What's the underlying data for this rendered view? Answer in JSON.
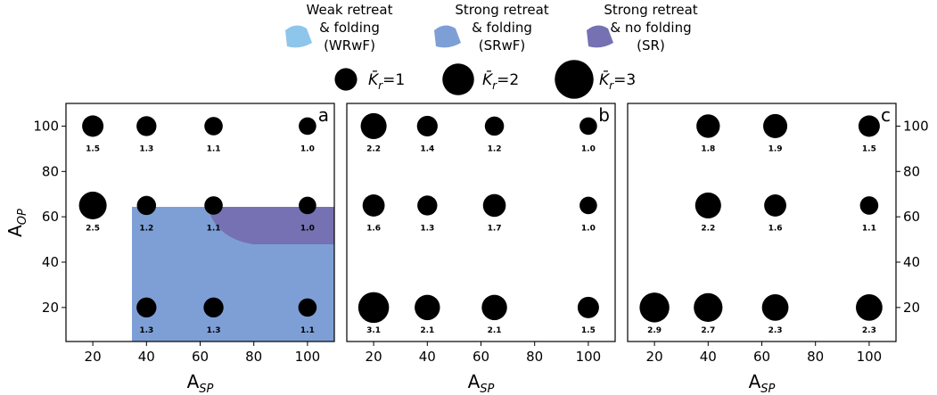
{
  "chart_data": {
    "type": "scatter",
    "colors": {
      "WRwF": "#8ec5ea",
      "SRwF": "#7e9fd6",
      "SR": "#7571b2",
      "dots": "#000000",
      "frame": "#000000"
    },
    "legend": {
      "regions": [
        {
          "key": "WRwF",
          "lines": [
            "Weak retreat",
            "& folding",
            "(WRwF)"
          ]
        },
        {
          "key": "SRwF",
          "lines": [
            "Strong retreat",
            "& folding",
            "(SRwF)"
          ]
        },
        {
          "key": "SR",
          "lines": [
            "Strong retreat",
            "& no folding",
            "(SR)"
          ]
        }
      ],
      "size_symbol": "K̄",
      "size_symbol_sub": "r",
      "sizes": [
        1,
        2,
        3
      ]
    },
    "xlabel": {
      "main": "A",
      "sub": "SP"
    },
    "ylabel": {
      "main": "A",
      "sub": "OP"
    },
    "xlim": [
      10,
      110
    ],
    "ylim": [
      5,
      110
    ],
    "xticks": [
      20,
      40,
      60,
      80,
      100
    ],
    "yticks": [
      20,
      40,
      60,
      80,
      100
    ],
    "panels": [
      {
        "label": "a",
        "points": [
          {
            "x": 20,
            "y": 100,
            "k": 1.5
          },
          {
            "x": 40,
            "y": 100,
            "k": 1.3
          },
          {
            "x": 65,
            "y": 100,
            "k": 1.1
          },
          {
            "x": 100,
            "y": 100,
            "k": 1.0
          },
          {
            "x": 20,
            "y": 65,
            "k": 2.5
          },
          {
            "x": 40,
            "y": 65,
            "k": 1.2
          },
          {
            "x": 65,
            "y": 65,
            "k": 1.1
          },
          {
            "x": 100,
            "y": 65,
            "k": 1.0
          },
          {
            "x": 40,
            "y": 20,
            "k": 1.3
          },
          {
            "x": 65,
            "y": 20,
            "k": 1.3
          },
          {
            "x": 100,
            "y": 20,
            "k": 1.1
          }
        ]
      },
      {
        "label": "b",
        "points": [
          {
            "x": 20,
            "y": 100,
            "k": 2.2
          },
          {
            "x": 40,
            "y": 100,
            "k": 1.4
          },
          {
            "x": 65,
            "y": 100,
            "k": 1.2
          },
          {
            "x": 100,
            "y": 100,
            "k": 1.0
          },
          {
            "x": 20,
            "y": 65,
            "k": 1.6
          },
          {
            "x": 40,
            "y": 65,
            "k": 1.3
          },
          {
            "x": 65,
            "y": 65,
            "k": 1.7
          },
          {
            "x": 100,
            "y": 65,
            "k": 1.0
          },
          {
            "x": 20,
            "y": 20,
            "k": 3.1
          },
          {
            "x": 40,
            "y": 20,
            "k": 2.1
          },
          {
            "x": 65,
            "y": 20,
            "k": 2.1
          },
          {
            "x": 100,
            "y": 20,
            "k": 1.5
          }
        ]
      },
      {
        "label": "c",
        "points": [
          {
            "x": 40,
            "y": 100,
            "k": 1.8
          },
          {
            "x": 65,
            "y": 100,
            "k": 1.9
          },
          {
            "x": 100,
            "y": 100,
            "k": 1.5
          },
          {
            "x": 40,
            "y": 65,
            "k": 2.2
          },
          {
            "x": 65,
            "y": 65,
            "k": 1.6
          },
          {
            "x": 100,
            "y": 65,
            "k": 1.1
          },
          {
            "x": 20,
            "y": 20,
            "k": 2.9
          },
          {
            "x": 40,
            "y": 20,
            "k": 2.7
          },
          {
            "x": 65,
            "y": 20,
            "k": 2.3
          },
          {
            "x": 100,
            "y": 20,
            "k": 2.3
          }
        ]
      }
    ]
  }
}
